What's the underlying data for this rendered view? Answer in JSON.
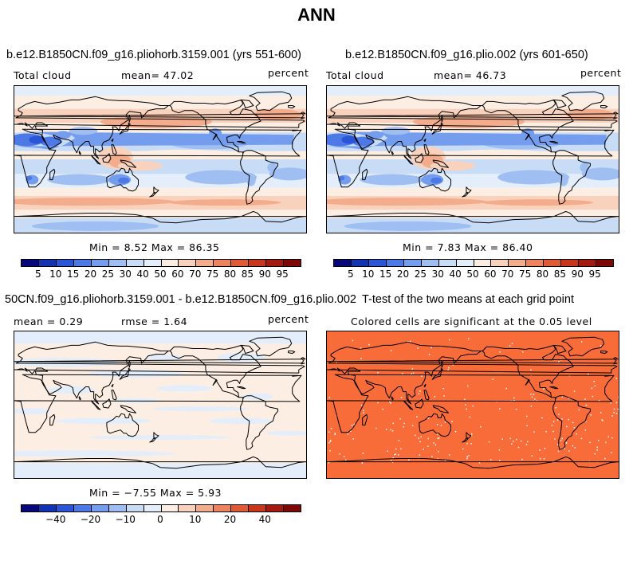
{
  "page_title": "ANN",
  "panels": [
    {
      "title": "b.e12.B1850CN.f09_g16.pliohorb.3159.001 (yrs 551-600)",
      "left_label": "Total cloud",
      "center_label": "mean=  47.02",
      "right_label": "percent",
      "stats": "Min =   8.52 Max =  86.35"
    },
    {
      "title": "b.e12.B1850CN.f09_g16.plio.002 (yrs 601-650)",
      "left_label": "Total cloud",
      "center_label": "mean=  46.73",
      "right_label": "percent",
      "stats": "Min =   7.83 Max =  86.40"
    },
    {
      "title": "50CN.f09_g16.pliohorb.3159.001 - b.e12.B1850CN.f09_g16.plio.002",
      "left_label": "mean =   0.29",
      "center_label": "rmse =   1.64",
      "right_label": "percent",
      "stats": "Min =  −7.55 Max =   5.93"
    },
    {
      "title": "T-test of the two means at each grid point",
      "left_label": "Colored cells are significant at the 0.05 level",
      "center_label": "",
      "right_label": "",
      "stats": ""
    }
  ],
  "chart_data": [
    {
      "type": "heatmap",
      "title": "b.e12.B1850CN.f09_g16.pliohorb.3159.001 (yrs 551-600)",
      "variable": "Total cloud",
      "units": "percent",
      "mean": 47.02,
      "min": 8.52,
      "max": 86.35,
      "colorbar_levels": [
        5,
        10,
        15,
        20,
        25,
        30,
        40,
        50,
        60,
        70,
        75,
        80,
        85,
        90,
        95
      ],
      "colorbar_colors": [
        "#08087a",
        "#1233b4",
        "#2a55d6",
        "#4c79e6",
        "#749ded",
        "#9fbff2",
        "#c9dcf6",
        "#e4eefb",
        "#fdeee3",
        "#f9d2bd",
        "#f3ac8c",
        "#ec835e",
        "#e15a36",
        "#c8361c",
        "#a51a0f",
        "#7e0806"
      ]
    },
    {
      "type": "heatmap",
      "title": "b.e12.B1850CN.f09_g16.plio.002 (yrs 601-650)",
      "variable": "Total cloud",
      "units": "percent",
      "mean": 46.73,
      "min": 7.83,
      "max": 86.4,
      "colorbar_levels": [
        5,
        10,
        15,
        20,
        25,
        30,
        40,
        50,
        60,
        70,
        75,
        80,
        85,
        90,
        95
      ],
      "colorbar_colors": [
        "#08087a",
        "#1233b4",
        "#2a55d6",
        "#4c79e6",
        "#749ded",
        "#9fbff2",
        "#c9dcf6",
        "#e4eefb",
        "#fdeee3",
        "#f9d2bd",
        "#f3ac8c",
        "#ec835e",
        "#e15a36",
        "#c8361c",
        "#a51a0f",
        "#7e0806"
      ]
    },
    {
      "type": "heatmap",
      "title": "50CN.f09_g16.pliohorb.3159.001 - b.e12.B1850CN.f09_g16.plio.002",
      "units": "percent",
      "mean": 0.29,
      "rmse": 1.64,
      "min": -7.55,
      "max": 5.93,
      "colorbar_levels": [
        -50,
        -40,
        -30,
        -20,
        -15,
        -10,
        -5,
        0,
        5,
        10,
        15,
        20,
        30,
        40,
        50
      ],
      "colorbar_tick_labels": [
        -40,
        -20,
        -10,
        0,
        10,
        20,
        40
      ],
      "colorbar_colors": [
        "#08087a",
        "#1233b4",
        "#2a55d6",
        "#4c79e6",
        "#749ded",
        "#9fbff2",
        "#c9dcf6",
        "#e4eefb",
        "#fdeee3",
        "#f9d2bd",
        "#f3ac8c",
        "#ec835e",
        "#e15a36",
        "#c8361c",
        "#a51a0f",
        "#7e0806"
      ]
    },
    {
      "type": "heatmap",
      "title": "T-test of the two means at each grid point",
      "significance_level": 0.05,
      "significant_color": "#f86c3a",
      "insignificant_color": "#ffffff"
    }
  ]
}
